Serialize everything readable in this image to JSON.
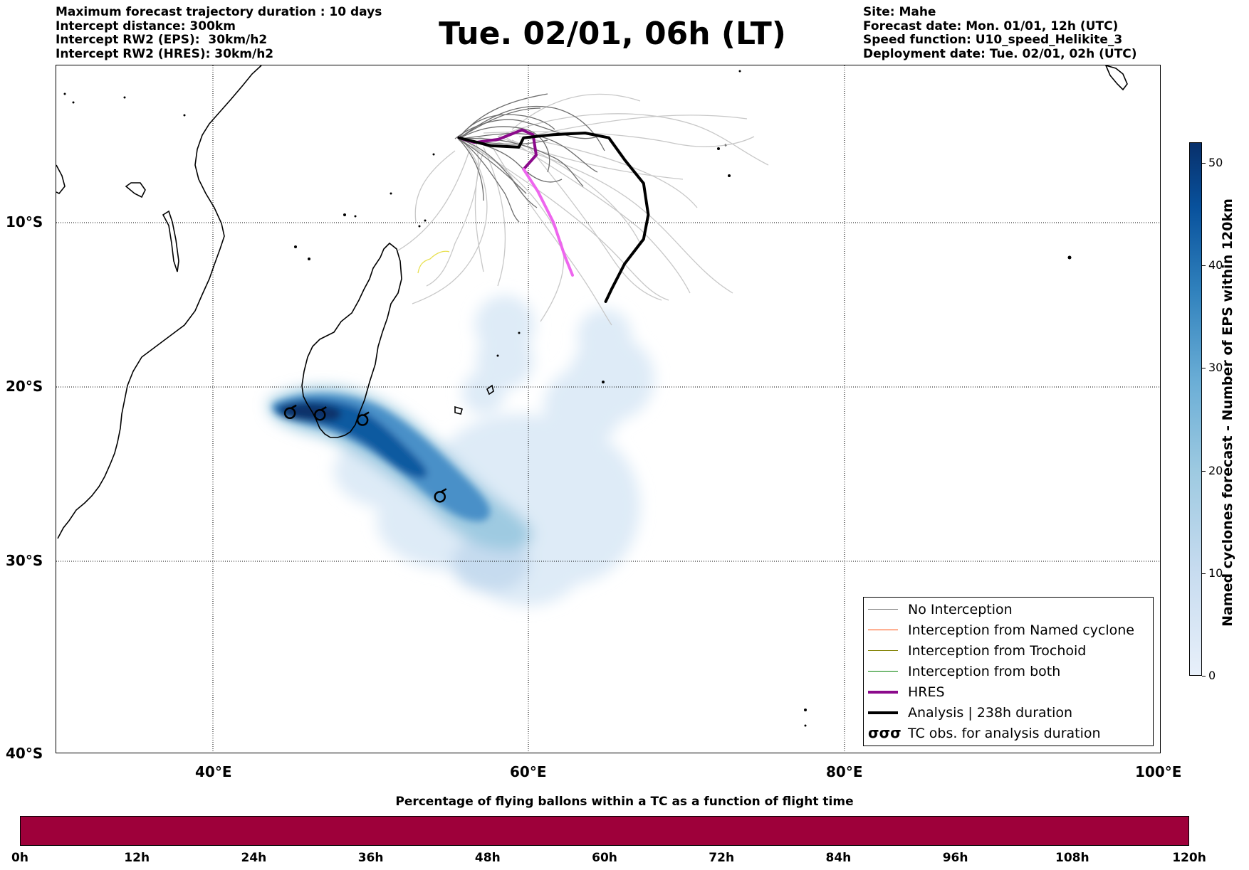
{
  "header_left": [
    "Maximum forecast trajectory duration : 10 days",
    "Intercept distance: 300km",
    "Intercept RW2 (EPS):  30km/h2",
    "Intercept RW2 (HRES): 30km/h2"
  ],
  "title": "Tue. 02/01, 06h (LT)",
  "header_right": [
    "Site: Mahe",
    "Forecast date: Mon. 01/01, 12h (UTC)",
    "Speed function: U10_speed_Helikite_3",
    "Deployment date: Tue. 02/01, 02h (UTC)"
  ],
  "map": {
    "lat_ticks": [
      "10°S",
      "20°S",
      "30°S",
      "40°S"
    ],
    "lon_ticks": [
      "40°E",
      "60°E",
      "80°E",
      "100°E"
    ],
    "hres_track": [
      [
        55.5,
        -4.6
      ],
      [
        56.5,
        -4.9
      ],
      [
        58.0,
        -4.7
      ],
      [
        59.5,
        -4.1
      ],
      [
        60.2,
        -4.4
      ],
      [
        60.4,
        -5.7
      ],
      [
        59.6,
        -6.6
      ],
      [
        60.5,
        -8.0
      ],
      [
        61.5,
        -10.0
      ],
      [
        62.2,
        -12.0
      ],
      [
        62.7,
        -13.2
      ]
    ],
    "analysis_track": [
      [
        55.5,
        -4.6
      ],
      [
        57.5,
        -5.1
      ],
      [
        59.3,
        -5.2
      ],
      [
        59.6,
        -4.6
      ],
      [
        61.5,
        -4.4
      ],
      [
        63.5,
        -4.3
      ],
      [
        65.0,
        -4.6
      ],
      [
        66.0,
        -6.0
      ],
      [
        67.2,
        -7.5
      ],
      [
        67.5,
        -9.5
      ],
      [
        67.2,
        -11.0
      ],
      [
        66.0,
        -12.5
      ],
      [
        65.2,
        -14.0
      ],
      [
        64.8,
        -14.8
      ]
    ],
    "tc_obs": [
      [
        44.8,
        -21.5
      ],
      [
        46.7,
        -21.6
      ],
      [
        49.4,
        -21.9
      ],
      [
        54.3,
        -26.3
      ]
    ],
    "colors": {
      "hres": "#8b0a8b",
      "hres_tail": "#ee66ee",
      "analysis": "#000000",
      "no_intercept": "#777777"
    }
  },
  "legend": [
    {
      "label": "No Interception",
      "color": "#808080",
      "width": 1.2
    },
    {
      "label": "Interception from Named cyclone",
      "color": "#ff4500",
      "width": 1.2
    },
    {
      "label": "Interception from Trochoid",
      "color": "#808000",
      "width": 1.2
    },
    {
      "label": "Interception from both",
      "color": "#008000",
      "width": 1.2
    },
    {
      "label": "HRES",
      "color": "#8b0a8b",
      "width": 4
    },
    {
      "label": "Analysis | 238h duration",
      "color": "#000000",
      "width": 4
    },
    {
      "label": "TC obs. for analysis duration",
      "symbol": "σσσ"
    }
  ],
  "colorbar": {
    "label": "Named cyclones forecast - Number of EPS within 120km",
    "ticks": [
      "0",
      "10",
      "20",
      "30",
      "40",
      "50"
    ],
    "range": [
      0,
      52
    ]
  },
  "percentage": {
    "title": "Percentage of flying ballons within a TC as a function of flight time",
    "color": "#9e003a",
    "ticks": [
      "0h",
      "12h",
      "24h",
      "36h",
      "48h",
      "60h",
      "72h",
      "84h",
      "96h",
      "108h",
      "120h"
    ]
  }
}
